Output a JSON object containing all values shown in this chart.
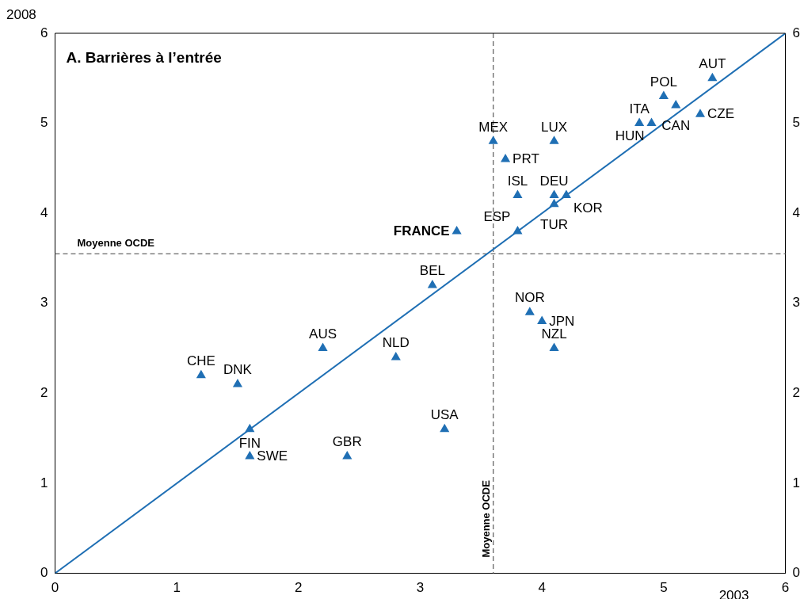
{
  "chart_data": {
    "type": "scatter",
    "title": "A. Barrières à l’entrée",
    "xlabel": "2003",
    "ylabel": "2008",
    "xlim": [
      0,
      6
    ],
    "xticks": [
      0,
      1,
      2,
      3,
      4,
      5,
      6
    ],
    "ylim": [
      0,
      6
    ],
    "yticks": [
      0,
      1,
      2,
      3,
      4,
      5,
      6
    ],
    "y2lim": [
      0,
      6
    ],
    "y2ticks": [
      0,
      1,
      2,
      3,
      4,
      5,
      6
    ],
    "grid": false,
    "legend": false,
    "marker": "triangle",
    "series": [
      {
        "type": "scatter",
        "color": "#1f6fb4",
        "x": [
          5.4,
          5.0,
          5.1,
          5.3,
          4.8,
          4.9,
          4.1,
          3.6,
          3.7,
          3.8,
          4.1,
          4.2,
          4.1,
          3.8,
          3.3,
          3.1,
          3.9,
          4.0,
          4.1,
          2.2,
          2.8,
          1.2,
          1.5,
          1.6,
          1.6,
          2.4,
          3.2
        ],
        "values": [
          5.5,
          5.3,
          5.2,
          5.1,
          5.0,
          5.0,
          4.8,
          4.8,
          4.6,
          4.2,
          4.2,
          4.2,
          4.1,
          3.8,
          3.8,
          3.2,
          2.9,
          2.8,
          2.5,
          2.5,
          2.4,
          2.2,
          2.1,
          1.6,
          1.3,
          1.3,
          1.6
        ]
      },
      {
        "type": "line",
        "color": "#1f6fb4",
        "marker": "none",
        "line_style": "solid",
        "x": [
          0,
          6
        ],
        "values": [
          0,
          6
        ]
      }
    ],
    "ref_lines": [
      {
        "axis": "x",
        "value": 3.6,
        "label": "Moyenne OCDE",
        "color": "#666666",
        "line_style": "dashed"
      },
      {
        "axis": "y",
        "value": 3.55,
        "label": "Moyenne OCDE",
        "color": "#666666",
        "line_style": "dashed"
      }
    ],
    "annotations": [
      {
        "text": "AUT",
        "x": 5.4,
        "y": 5.5
      },
      {
        "text": "POL",
        "x": 5.0,
        "y": 5.3
      },
      {
        "text": "CAN",
        "x": 5.1,
        "y": 5.2
      },
      {
        "text": "CZE",
        "x": 5.3,
        "y": 5.1
      },
      {
        "text": "ITA",
        "x": 4.8,
        "y": 5.0
      },
      {
        "text": "HUN",
        "x": 4.9,
        "y": 5.0
      },
      {
        "text": "LUX",
        "x": 4.1,
        "y": 4.8
      },
      {
        "text": "MEX",
        "x": 3.6,
        "y": 4.8
      },
      {
        "text": "PRT",
        "x": 3.7,
        "y": 4.6
      },
      {
        "text": "ISL",
        "x": 3.8,
        "y": 4.2
      },
      {
        "text": "DEU",
        "x": 4.1,
        "y": 4.2
      },
      {
        "text": "KOR",
        "x": 4.2,
        "y": 4.2
      },
      {
        "text": "TUR",
        "x": 4.1,
        "y": 4.1
      },
      {
        "text": "ESP",
        "x": 3.8,
        "y": 3.8
      },
      {
        "text": "FRANCE",
        "x": 3.3,
        "y": 3.8
      },
      {
        "text": "BEL",
        "x": 3.1,
        "y": 3.2
      },
      {
        "text": "NOR",
        "x": 3.9,
        "y": 2.9
      },
      {
        "text": "JPN",
        "x": 4.0,
        "y": 2.8
      },
      {
        "text": "NZL",
        "x": 4.1,
        "y": 2.5
      },
      {
        "text": "AUS",
        "x": 2.2,
        "y": 2.5
      },
      {
        "text": "NLD",
        "x": 2.8,
        "y": 2.4
      },
      {
        "text": "CHE",
        "x": 1.2,
        "y": 2.2
      },
      {
        "text": "DNK",
        "x": 1.5,
        "y": 2.1
      },
      {
        "text": "FIN",
        "x": 1.6,
        "y": 1.6
      },
      {
        "text": "SWE",
        "x": 1.6,
        "y": 1.3
      },
      {
        "text": "GBR",
        "x": 2.4,
        "y": 1.3
      },
      {
        "text": "USA",
        "x": 3.2,
        "y": 1.6
      }
    ]
  }
}
